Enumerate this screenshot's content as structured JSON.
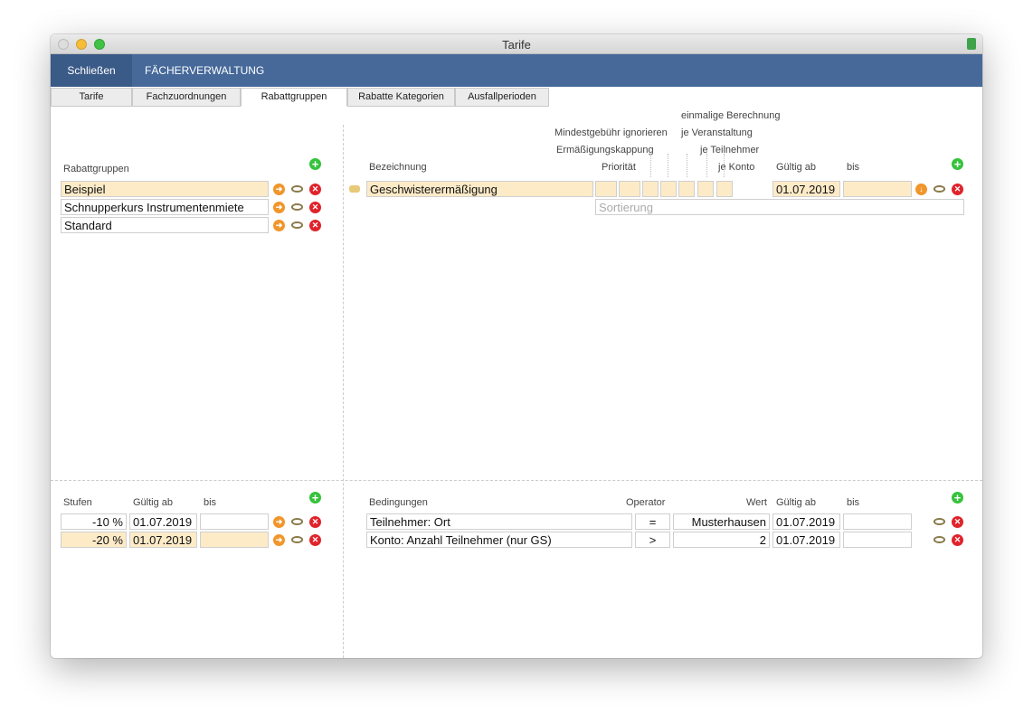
{
  "window": {
    "title": "Tarife"
  },
  "toolbar": {
    "close": "Schließen",
    "menu": "FÄCHERVERWALTUNG"
  },
  "tabs": [
    "Tarife",
    "Fachzuordnungen",
    "Rabattgruppen",
    "Rabatte Kategorien",
    "Ausfallperioden"
  ],
  "groups": {
    "label": "Rabattgruppen",
    "rows": [
      "Beispiel",
      "Schnupperkurs Instrumentenmiete",
      "Standard"
    ]
  },
  "discounts": {
    "headers": {
      "name": "Bezeichnung",
      "priority": "Priorität",
      "cap": "Ermäßigungskappung",
      "min_fee": "Mindestgebühr ignorieren",
      "once": "einmalige Berechnung",
      "per_event": "je Veranstaltung",
      "per_participant": "je Teilnehmer",
      "per_account": "je Konto",
      "valid_from": "Gültig ab",
      "valid_to": "bis"
    },
    "rows": [
      {
        "name": "Geschwisterermäßigung",
        "valid_from": "01.07.2019"
      }
    ],
    "sort_placeholder": "Sortierung"
  },
  "levels": {
    "headers": {
      "label": "Stufen",
      "valid_from": "Gültig ab",
      "valid_to": "bis"
    },
    "rows": [
      {
        "value": "-10 %",
        "valid_from": "01.07.2019"
      },
      {
        "value": "-20 %",
        "valid_from": "01.07.2019"
      }
    ]
  },
  "conditions": {
    "headers": {
      "label": "Bedingungen",
      "operator": "Operator",
      "value": "Wert",
      "valid_from": "Gültig ab",
      "valid_to": "bis"
    },
    "rows": [
      {
        "name": "Teilnehmer: Ort",
        "operator": "=",
        "value": "Musterhausen",
        "valid_from": "01.07.2019"
      },
      {
        "name": "Konto: Anzahl Teilnehmer (nur GS)",
        "operator": ">",
        "value": "2",
        "valid_from": "01.07.2019"
      }
    ]
  }
}
